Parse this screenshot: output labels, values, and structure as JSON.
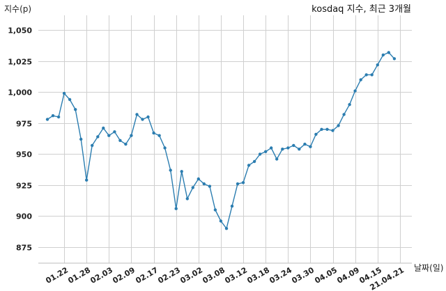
{
  "chart_data": {
    "type": "line",
    "title": "kosdaq 지수, 최근 3개월",
    "xlabel": "날짜(일)",
    "ylabel": "지수(p)",
    "ylim": [
      862,
      1062
    ],
    "yticks": [
      875,
      900,
      925,
      950,
      975,
      1000,
      1025,
      1050
    ],
    "ytick_labels": [
      "875",
      "900",
      "925",
      "950",
      "975",
      "1,000",
      "1,025",
      "1,050"
    ],
    "xtick_labels": [
      "01.22",
      "01.28",
      "02.03",
      "02.09",
      "02.17",
      "02.23",
      "03.02",
      "03.08",
      "03.12",
      "03.18",
      "03.24",
      "03.30",
      "04.05",
      "04.09",
      "04.15",
      "21.04.21"
    ],
    "xtick_index": [
      3,
      7,
      11,
      15,
      19,
      23,
      27,
      31,
      35,
      39,
      43,
      47,
      51,
      55,
      59,
      63
    ],
    "grid": true,
    "series": [
      {
        "values": [
          978,
          981,
          980,
          999,
          994,
          986,
          962,
          929,
          957,
          964,
          971,
          965,
          968,
          961,
          958,
          965,
          982,
          978,
          980,
          967,
          965,
          955,
          937,
          906,
          936,
          914,
          923,
          930,
          926,
          924,
          905,
          896,
          890,
          908,
          926,
          927,
          941,
          944,
          950,
          952,
          955,
          946,
          954,
          955,
          957,
          954,
          958,
          956,
          966,
          970,
          970,
          969,
          973,
          982,
          990,
          1001,
          1010,
          1014,
          1014,
          1022,
          1030,
          1032,
          1027
        ]
      }
    ]
  }
}
